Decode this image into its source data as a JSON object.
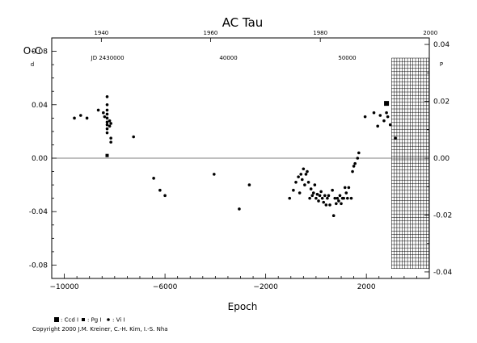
{
  "chart_data": {
    "type": "scatter",
    "title": "AC Tau",
    "xlabel": "Epoch",
    "ylabel": "O-C",
    "ylabel_unit": "d",
    "right_axis_unit": "P",
    "xlim": [
      -10500,
      4500
    ],
    "ylim": [
      -0.09,
      0.09
    ],
    "grid": false,
    "x_ticks": [
      -10000,
      -6000,
      -2000,
      2000
    ],
    "y_ticks": [
      -0.08,
      -0.04,
      0.0,
      0.04,
      0.08
    ],
    "y_tick_labels": [
      "-0.08",
      "-0.04",
      "0.00",
      "0.04",
      "0.08"
    ],
    "right_ticks": [
      -0.04,
      -0.02,
      0.0,
      0.02,
      0.04
    ],
    "right_tick_labels": [
      "-0.04",
      "-0.02",
      "0.00",
      "0.02",
      "0.04"
    ],
    "right_scale": 0.4699,
    "top_year_ticks": [
      {
        "label": "1940",
        "epoch": -8530
      },
      {
        "label": "1960",
        "epoch": -4190
      },
      {
        "label": "1980",
        "epoch": 170
      },
      {
        "label": "2000",
        "epoch": 4540
      }
    ],
    "top_jd_ticks": [
      {
        "label": "JD 2430000",
        "epoch": -8280
      },
      {
        "label": "40000",
        "epoch": -3480
      },
      {
        "label": "50000",
        "epoch": 1240
      }
    ],
    "hatch_region": {
      "x_from": 3000,
      "x_to": 4500
    },
    "legend": [
      "Ccd I",
      "Pg I",
      "Vi I"
    ],
    "series": [
      {
        "name": "Ccd I",
        "marker": "square",
        "points": [
          [
            2800,
            0.041
          ]
        ]
      },
      {
        "name": "Pg I",
        "marker": "small-square",
        "points": [
          [
            -8300,
            0.002
          ]
        ]
      },
      {
        "name": "Vi I",
        "marker": "dot",
        "points": [
          [
            -9600,
            0.03
          ],
          [
            -9350,
            0.032
          ],
          [
            -9100,
            0.03
          ],
          [
            -8650,
            0.036
          ],
          [
            -8450,
            0.034
          ],
          [
            -8400,
            0.031
          ],
          [
            -8300,
            0.046
          ],
          [
            -8300,
            0.04
          ],
          [
            -8300,
            0.036
          ],
          [
            -8300,
            0.033
          ],
          [
            -8300,
            0.03
          ],
          [
            -8300,
            0.027
          ],
          [
            -8300,
            0.025
          ],
          [
            -8300,
            0.022
          ],
          [
            -8300,
            0.019
          ],
          [
            -8200,
            0.028
          ],
          [
            -8200,
            0.024
          ],
          [
            -8150,
            0.026
          ],
          [
            -8150,
            0.015
          ],
          [
            -8150,
            0.012
          ],
          [
            -7250,
            0.016
          ],
          [
            -6450,
            -0.015
          ],
          [
            -6200,
            -0.024
          ],
          [
            -6000,
            -0.028
          ],
          [
            -4050,
            -0.012
          ],
          [
            -3050,
            -0.038
          ],
          [
            -2650,
            -0.02
          ],
          [
            -1050,
            -0.03
          ],
          [
            -900,
            -0.024
          ],
          [
            -800,
            -0.018
          ],
          [
            -700,
            -0.014
          ],
          [
            -650,
            -0.026
          ],
          [
            -600,
            -0.012
          ],
          [
            -550,
            -0.016
          ],
          [
            -500,
            -0.008
          ],
          [
            -450,
            -0.02
          ],
          [
            -400,
            -0.012
          ],
          [
            -350,
            -0.01
          ],
          [
            -300,
            -0.018
          ],
          [
            -250,
            -0.03
          ],
          [
            -200,
            -0.023
          ],
          [
            -150,
            -0.028
          ],
          [
            -100,
            -0.026
          ],
          [
            -50,
            -0.02
          ],
          [
            0,
            -0.03
          ],
          [
            50,
            -0.027
          ],
          [
            100,
            -0.032
          ],
          [
            150,
            -0.028
          ],
          [
            200,
            -0.025
          ],
          [
            250,
            -0.03
          ],
          [
            300,
            -0.033
          ],
          [
            350,
            -0.028
          ],
          [
            400,
            -0.035
          ],
          [
            450,
            -0.03
          ],
          [
            500,
            -0.028
          ],
          [
            550,
            -0.035
          ],
          [
            650,
            -0.024
          ],
          [
            700,
            -0.043
          ],
          [
            750,
            -0.03
          ],
          [
            800,
            -0.034
          ],
          [
            850,
            -0.03
          ],
          [
            900,
            -0.032
          ],
          [
            950,
            -0.028
          ],
          [
            1000,
            -0.034
          ],
          [
            1050,
            -0.03
          ],
          [
            1100,
            -0.03
          ],
          [
            1150,
            -0.022
          ],
          [
            1200,
            -0.026
          ],
          [
            1250,
            -0.03
          ],
          [
            1300,
            -0.022
          ],
          [
            1400,
            -0.03
          ],
          [
            1450,
            -0.01
          ],
          [
            1500,
            -0.006
          ],
          [
            1550,
            -0.004
          ],
          [
            1650,
            0.0
          ],
          [
            1700,
            0.004
          ],
          [
            1950,
            0.031
          ],
          [
            2300,
            0.034
          ],
          [
            2450,
            0.024
          ],
          [
            2550,
            0.032
          ],
          [
            2700,
            0.028
          ],
          [
            2800,
            0.034
          ],
          [
            2850,
            0.031
          ],
          [
            2950,
            0.025
          ],
          [
            3150,
            0.015
          ]
        ]
      }
    ]
  },
  "copyright": "Copyright 2000 J.M. Kreiner, C.-H. Kim, I.-S. Nha"
}
